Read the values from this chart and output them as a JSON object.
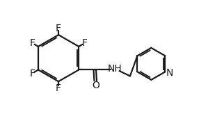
{
  "background_color": "#ffffff",
  "line_color": "#1a1a1a",
  "line_width": 1.6,
  "font_size_atoms": 10,
  "fig_width": 3.22,
  "fig_height": 1.77,
  "dpi": 100,
  "xlim": [
    0,
    10
  ],
  "ylim": [
    0,
    5.5
  ]
}
